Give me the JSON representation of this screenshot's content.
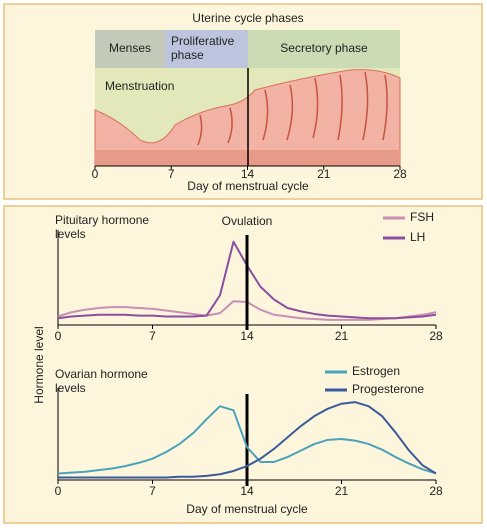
{
  "uterine": {
    "title": "Uterine cycle phases",
    "phases": [
      "Menses",
      "Proliferative phase",
      "Secretory phase"
    ],
    "label": "Menstruation",
    "xlabel": "Day of menstrual cycle",
    "xticks": [
      0,
      7,
      14,
      21,
      28
    ],
    "xlim": [
      0,
      28
    ]
  },
  "ylabel": "Hormone level",
  "chart_data": [
    {
      "type": "line",
      "title": "Pituitary hormone levels",
      "annotation": "Ovulation",
      "ovulation_day": 14,
      "x": [
        0,
        1,
        2,
        3,
        4,
        5,
        6,
        7,
        8,
        9,
        10,
        11,
        12,
        13,
        14,
        15,
        16,
        17,
        18,
        19,
        20,
        21,
        22,
        23,
        24,
        25,
        26,
        27,
        28
      ],
      "xlim": [
        0,
        28
      ],
      "xticks": [
        0,
        7,
        14,
        21,
        28
      ],
      "ylim": [
        0,
        1
      ],
      "series": [
        {
          "name": "FSH",
          "color": "#c98fb4",
          "values": [
            0.1,
            0.15,
            0.18,
            0.2,
            0.21,
            0.21,
            0.2,
            0.19,
            0.17,
            0.15,
            0.13,
            0.11,
            0.14,
            0.28,
            0.27,
            0.18,
            0.12,
            0.1,
            0.08,
            0.07,
            0.06,
            0.06,
            0.06,
            0.06,
            0.07,
            0.08,
            0.1,
            0.12,
            0.15
          ]
        },
        {
          "name": "LH",
          "color": "#8a4f9e",
          "values": [
            0.08,
            0.1,
            0.11,
            0.12,
            0.12,
            0.12,
            0.11,
            0.11,
            0.1,
            0.1,
            0.1,
            0.11,
            0.35,
            0.98,
            0.7,
            0.45,
            0.3,
            0.2,
            0.16,
            0.13,
            0.11,
            0.1,
            0.09,
            0.08,
            0.08,
            0.08,
            0.09,
            0.1,
            0.12
          ]
        }
      ]
    },
    {
      "type": "line",
      "title": "Ovarian hormone levels",
      "xlabel": "Day of menstrual cycle",
      "x": [
        0,
        1,
        2,
        3,
        4,
        5,
        6,
        7,
        8,
        9,
        10,
        11,
        12,
        13,
        14,
        15,
        16,
        17,
        18,
        19,
        20,
        21,
        22,
        23,
        24,
        25,
        26,
        27,
        28
      ],
      "xlim": [
        0,
        28
      ],
      "xticks": [
        0,
        7,
        14,
        21,
        28
      ],
      "ylim": [
        0,
        1
      ],
      "series": [
        {
          "name": "Estrogen",
          "color": "#4aa3bb",
          "values": [
            0.08,
            0.09,
            0.1,
            0.12,
            0.14,
            0.17,
            0.21,
            0.26,
            0.34,
            0.44,
            0.57,
            0.74,
            0.9,
            0.85,
            0.4,
            0.22,
            0.22,
            0.28,
            0.36,
            0.44,
            0.49,
            0.5,
            0.48,
            0.44,
            0.37,
            0.28,
            0.2,
            0.13,
            0.08
          ]
        },
        {
          "name": "Progesterone",
          "color": "#3b5b9b",
          "values": [
            0.03,
            0.03,
            0.03,
            0.03,
            0.03,
            0.03,
            0.03,
            0.03,
            0.03,
            0.04,
            0.04,
            0.05,
            0.07,
            0.11,
            0.17,
            0.26,
            0.38,
            0.52,
            0.66,
            0.78,
            0.87,
            0.93,
            0.95,
            0.9,
            0.78,
            0.58,
            0.36,
            0.18,
            0.08
          ]
        }
      ]
    }
  ]
}
